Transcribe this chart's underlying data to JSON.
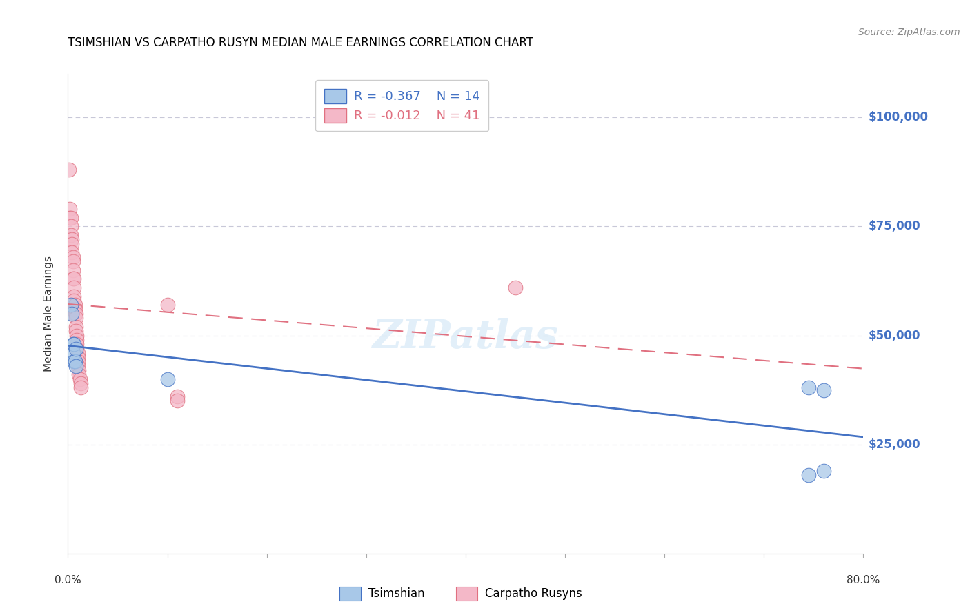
{
  "title": "TSIMSHIAN VS CARPATHO RUSYN MEDIAN MALE EARNINGS CORRELATION CHART",
  "source": "Source: ZipAtlas.com",
  "ylabel": "Median Male Earnings",
  "ytick_labels": [
    "$25,000",
    "$50,000",
    "$75,000",
    "$100,000"
  ],
  "ytick_values": [
    25000,
    50000,
    75000,
    100000
  ],
  "ymin": 0,
  "ymax": 110000,
  "xmin": 0.0,
  "xmax": 0.8,
  "legend_tsimshian": "Tsimshian",
  "legend_carpathian": "Carpatho Rusyns",
  "r_tsimshian": "R = -0.367",
  "n_tsimshian": "N = 14",
  "r_carpathian": "R = -0.012",
  "n_carpathian": "N = 41",
  "color_tsimshian": "#a8c8e8",
  "color_carpathian": "#f4b8c8",
  "color_trendline_tsimshian": "#4472c4",
  "color_trendline_carpathian": "#e07080",
  "color_ytick": "#4472c4",
  "color_grid": "#c8c8d8",
  "tsimshian_x": [
    0.003,
    0.004,
    0.005,
    0.005,
    0.006,
    0.006,
    0.007,
    0.008,
    0.008,
    0.1,
    0.745,
    0.76,
    0.745,
    0.76
  ],
  "tsimshian_y": [
    57000,
    55000,
    48000,
    46000,
    48000,
    44000,
    44000,
    47000,
    43000,
    40000,
    38000,
    37500,
    18000,
    19000
  ],
  "carpathian_x": [
    0.001,
    0.002,
    0.002,
    0.003,
    0.003,
    0.003,
    0.004,
    0.004,
    0.004,
    0.005,
    0.005,
    0.005,
    0.005,
    0.006,
    0.006,
    0.006,
    0.006,
    0.007,
    0.007,
    0.007,
    0.008,
    0.008,
    0.008,
    0.008,
    0.009,
    0.009,
    0.009,
    0.009,
    0.01,
    0.01,
    0.01,
    0.01,
    0.011,
    0.011,
    0.012,
    0.013,
    0.013,
    0.1,
    0.11,
    0.45,
    0.11
  ],
  "carpathian_y": [
    88000,
    79000,
    77000,
    77000,
    75000,
    73000,
    72000,
    71000,
    69000,
    68000,
    67000,
    65000,
    63000,
    63000,
    61000,
    59000,
    58000,
    57000,
    56000,
    55000,
    55000,
    54000,
    52000,
    51000,
    50000,
    49000,
    48000,
    47000,
    46000,
    45000,
    44000,
    43000,
    42000,
    41000,
    40000,
    39000,
    38000,
    57000,
    36000,
    61000,
    35000
  ]
}
